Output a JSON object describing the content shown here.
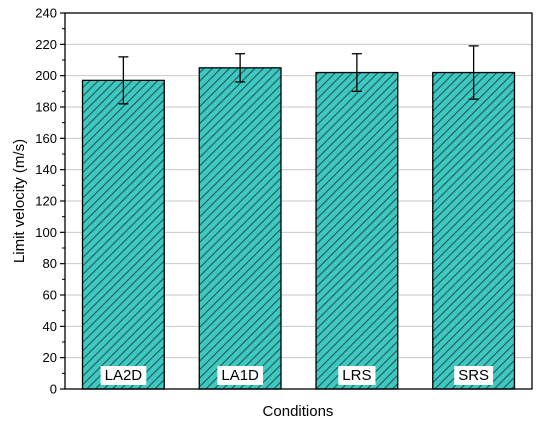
{
  "chart_data": {
    "type": "bar",
    "categories": [
      "LA2D",
      "LA1D",
      "LRS",
      "SRS"
    ],
    "values": [
      197,
      205,
      202,
      202
    ],
    "error_low": [
      182,
      196,
      190,
      185
    ],
    "error_high": [
      212,
      214,
      214,
      219
    ],
    "xlabel": "Conditions",
    "ylabel": "Limit velocity (m/s)",
    "ylim": [
      0,
      240
    ],
    "yticks": [
      0,
      20,
      40,
      60,
      80,
      100,
      120,
      140,
      160,
      180,
      200,
      220,
      240
    ],
    "grid": true,
    "legend": "none",
    "bar_color": "#3ec8c0",
    "hatch_color": "#1f5a5a"
  }
}
